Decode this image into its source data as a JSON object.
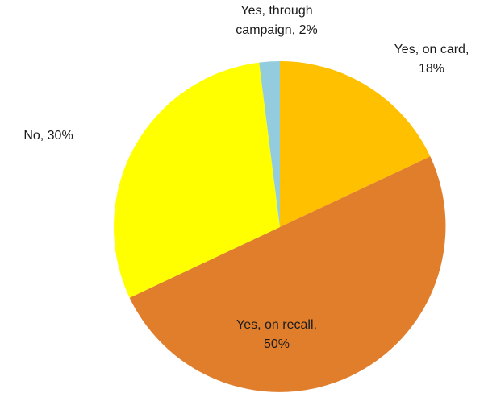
{
  "chart_data": {
    "type": "pie",
    "title": "",
    "start_angle_deg": 0,
    "direction": "clockwise",
    "legend": "none",
    "slices": [
      {
        "label_lines": [
          "Yes, on card,",
          "18%"
        ],
        "value": 18,
        "color": "#FFC000"
      },
      {
        "label_lines": [
          "Yes, on recall,",
          "50%"
        ],
        "value": 50,
        "color": "#E07E2C"
      },
      {
        "label_lines": [
          "No, 30%"
        ],
        "value": 30,
        "color": "#FFFF00"
      },
      {
        "label_lines": [
          "Yes, through",
          "campaign, 2%"
        ],
        "value": 2,
        "color": "#93CDDD"
      }
    ]
  }
}
